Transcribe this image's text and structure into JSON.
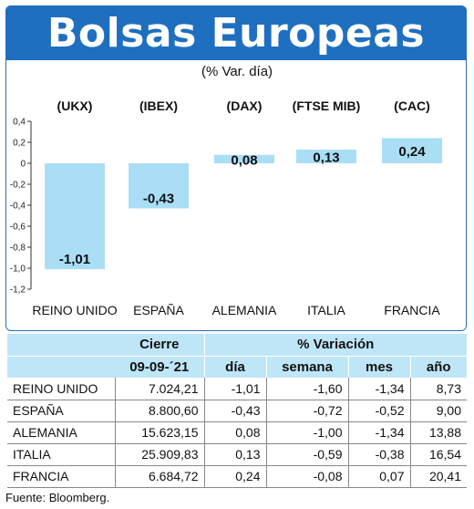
{
  "header": {
    "title": "Bolsas Europeas",
    "subtitle": "(% Var. día)"
  },
  "chart_data": {
    "type": "bar",
    "top_labels": [
      "(UKX)",
      "(IBEX)",
      "(DAX)",
      "(FTSE MIB)",
      "(CAC)"
    ],
    "categories": [
      "REINO UNIDO",
      "ESPAÑA",
      "ALEMANIA",
      "ITALIA",
      "FRANCIA"
    ],
    "values": [
      -1.01,
      -0.43,
      0.08,
      0.13,
      0.24
    ],
    "value_labels": [
      "-1,01",
      "-0,43",
      "0,08",
      "0,13",
      "0,24"
    ],
    "ylim": [
      -1.2,
      0.4
    ],
    "yticks": [
      "0,4",
      "0,2",
      "0",
      "-0,2",
      "-0,4",
      "-0,6",
      "-0,8",
      "-1,0",
      "-1,2"
    ],
    "bar_color": "#a9def5"
  },
  "table": {
    "header_cierre": "Cierre",
    "header_variacion": "% Variación",
    "header_date": "09-09-´21",
    "header_cols": [
      "día",
      "semana",
      "mes",
      "año"
    ],
    "rows": [
      {
        "name": "REINO UNIDO",
        "cierre": "7.024,21",
        "dia": "-1,01",
        "semana": "-1,60",
        "mes": "-1,34",
        "ano": "8,73"
      },
      {
        "name": "ESPAÑA",
        "cierre": "8.800,60",
        "dia": "-0,43",
        "semana": "-0,72",
        "mes": "-0,52",
        "ano": "9,00"
      },
      {
        "name": "ALEMANIA",
        "cierre": "15.623,15",
        "dia": "0,08",
        "semana": "-1,00",
        "mes": "-1,34",
        "ano": "13,88"
      },
      {
        "name": "ITALIA",
        "cierre": "25.909,83",
        "dia": "0,13",
        "semana": "-0,59",
        "mes": "-0,38",
        "ano": "16,54"
      },
      {
        "name": "FRANCIA",
        "cierre": "6.684,72",
        "dia": "0,24",
        "semana": "-0,08",
        "mes": "0,07",
        "ano": "20,41"
      }
    ]
  },
  "source": "Fuente: Bloomberg."
}
